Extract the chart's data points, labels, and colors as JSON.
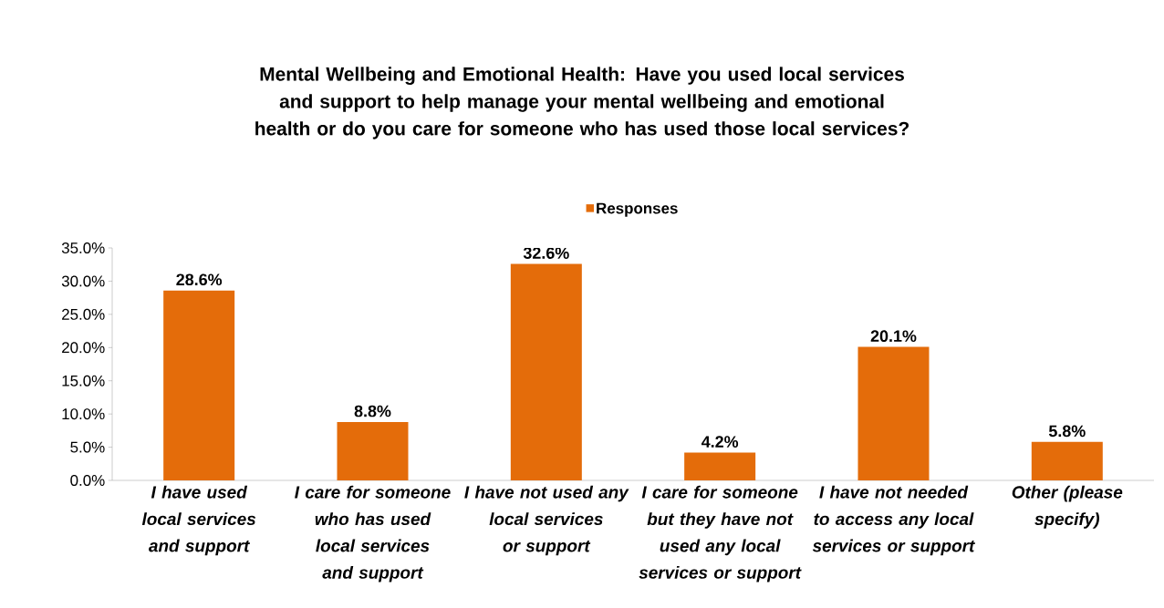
{
  "chart_data": {
    "type": "bar",
    "title": "Mental Wellbeing and Emotional Health: Have you used local services and support to help manage your mental wellbeing and emotional health or do you care for someone who has used those local services?",
    "categories": [
      "I have used local services and support",
      "I care for someone who has used local services and support",
      "I have not used any local services or support",
      "I care for someone but they have not used any local services or support",
      "I have not needed to access any local services or support",
      "Other (please specify)"
    ],
    "series": [
      {
        "name": "Responses",
        "color": "#e46c0a",
        "values": [
          28.6,
          8.8,
          32.6,
          4.2,
          20.1,
          5.8
        ],
        "value_labels": [
          "28.6%",
          "8.8%",
          "32.6%",
          "4.2%",
          "20.1%",
          "5.8%"
        ]
      }
    ],
    "ylim": [
      0,
      35
    ],
    "yticks": [
      {
        "value": 0,
        "label": "0.0%"
      },
      {
        "value": 5,
        "label": "5.0%"
      },
      {
        "value": 10,
        "label": "10.0%"
      },
      {
        "value": 15,
        "label": "15.0%"
      },
      {
        "value": 20,
        "label": "20.0%"
      },
      {
        "value": 25,
        "label": "25.0%"
      },
      {
        "value": 30,
        "label": "30.0%"
      },
      {
        "value": 35,
        "label": "35.0%"
      }
    ],
    "grid": false,
    "legend": "top"
  }
}
